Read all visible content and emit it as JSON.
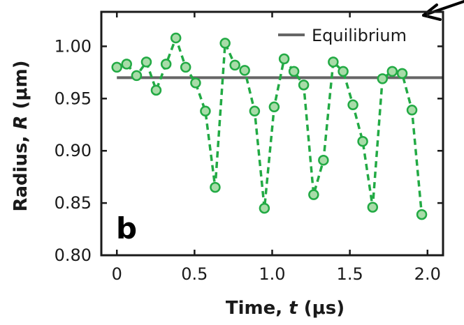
{
  "chart_data": {
    "type": "line",
    "panel_label": "b",
    "xlabel_main": "Time, ",
    "xlabel_var": "t",
    "xlabel_unit": " (μs)",
    "ylabel_main": "Radius, ",
    "ylabel_var": "R",
    "ylabel_unit": " (μm)",
    "xlim": [
      -0.1,
      2.1
    ],
    "ylim": [
      0.8,
      1.033
    ],
    "x_ticks": [
      0,
      0.5,
      1.0,
      1.5,
      2.0
    ],
    "x_tick_labels": [
      "0",
      "0.5",
      "1.0",
      "1.5",
      "2.0"
    ],
    "y_ticks": [
      0.8,
      0.85,
      0.9,
      0.95,
      1.0
    ],
    "y_tick_labels": [
      "0.80",
      "0.85",
      "0.90",
      "0.95",
      "1.00"
    ],
    "legend_position": "top-right",
    "colors": {
      "data": "#22aa44",
      "marker_fill": "#a8dca8",
      "equilibrium": "#666666"
    },
    "equilibrium": {
      "name": "Equilibrium",
      "y": 0.97
    },
    "series": [
      {
        "x": [
          0.0,
          0.063,
          0.127,
          0.19,
          0.253,
          0.317,
          0.38,
          0.443,
          0.507,
          0.57,
          0.633,
          0.697,
          0.76,
          0.823,
          0.887,
          0.95,
          1.013,
          1.077,
          1.14,
          1.203,
          1.267,
          1.33,
          1.393,
          1.457,
          1.52,
          1.583,
          1.647,
          1.71,
          1.773,
          1.837,
          1.9,
          1.963
        ],
        "y": [
          0.98,
          0.983,
          0.972,
          0.985,
          0.958,
          0.983,
          1.008,
          0.98,
          0.965,
          0.938,
          0.865,
          1.003,
          0.982,
          0.977,
          0.938,
          0.845,
          0.942,
          0.988,
          0.976,
          0.963,
          0.858,
          0.891,
          0.985,
          0.976,
          0.944,
          0.909,
          0.846,
          0.969,
          0.976,
          0.974,
          0.939,
          0.839
        ]
      }
    ]
  }
}
